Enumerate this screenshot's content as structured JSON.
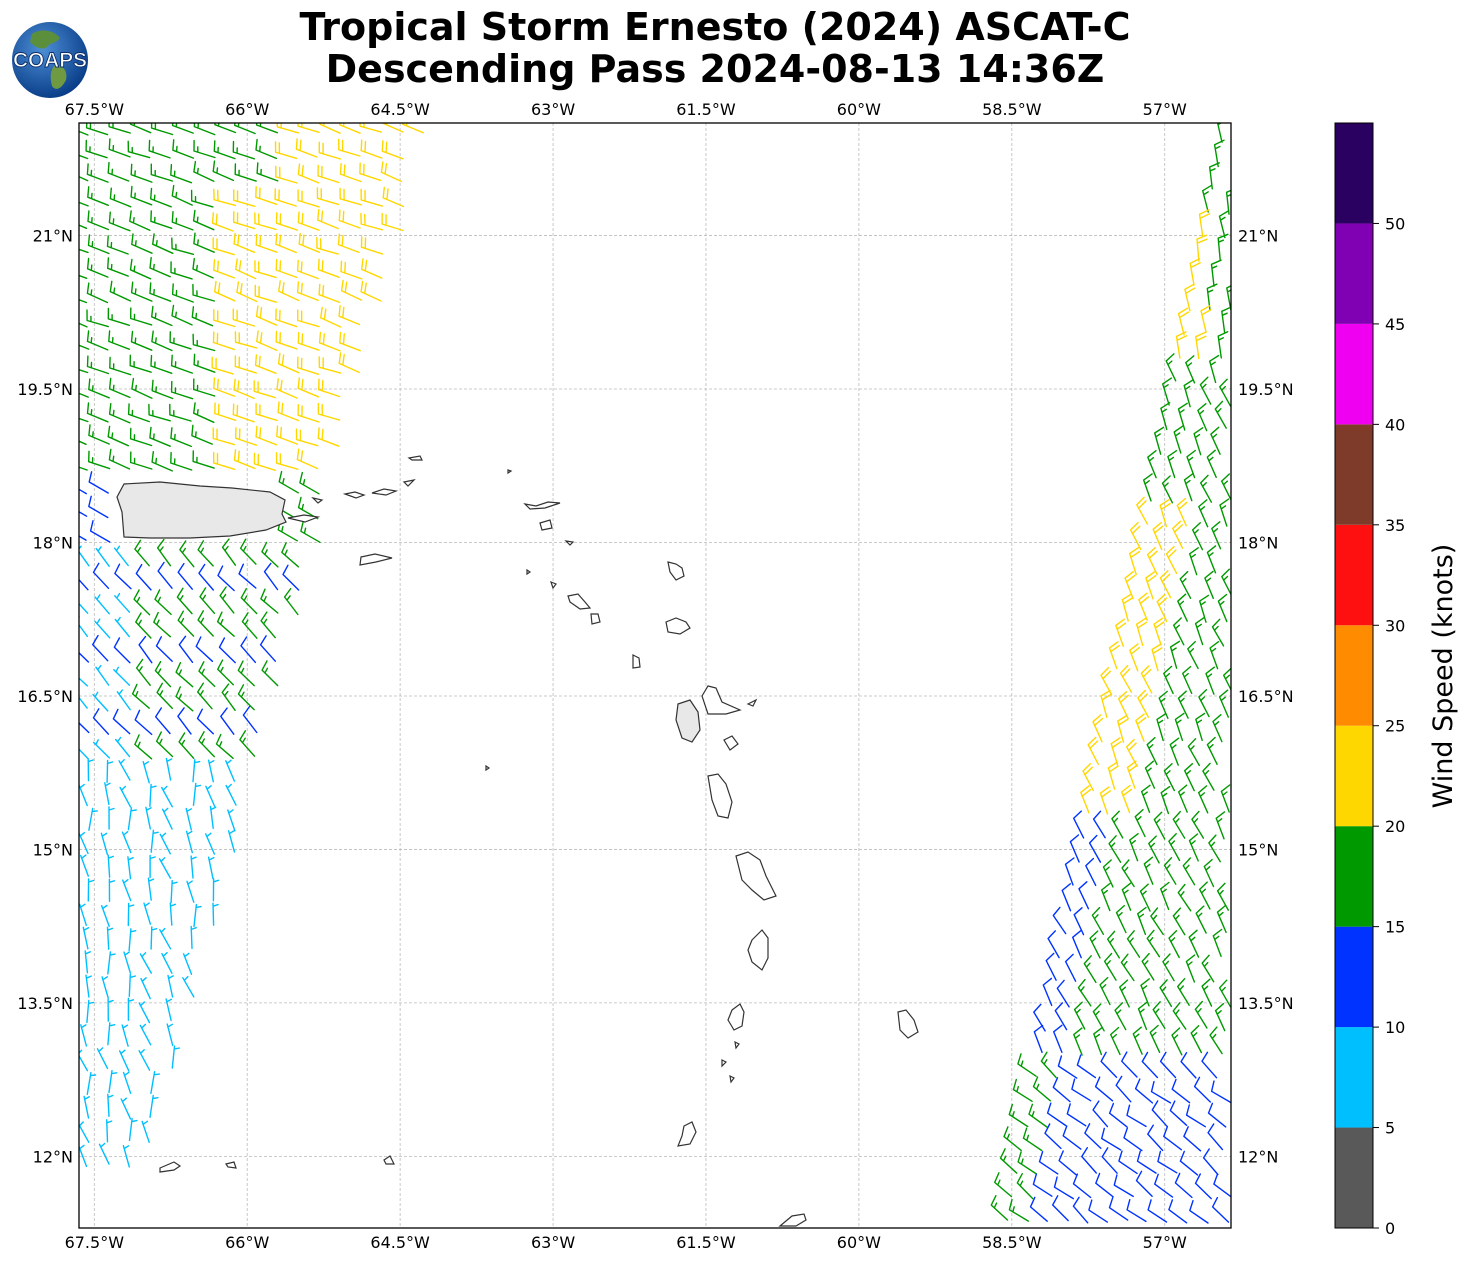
{
  "title": {
    "line1": "Tropical Storm Ernesto (2024) ASCAT-C",
    "line2": "Descending Pass 2024-08-13 14:36Z"
  },
  "logo": {
    "text": "COAPS",
    "icon": "globe-logo-icon"
  },
  "map": {
    "lon_range": [
      -67.65,
      -56.35
    ],
    "lat_range": [
      11.3,
      22.1
    ],
    "lon_ticks": [
      "67.5°W",
      "66°W",
      "64.5°W",
      "63°W",
      "61.5°W",
      "60°W",
      "58.5°W",
      "57°W"
    ],
    "lon_tick_values": [
      -67.5,
      -66,
      -64.5,
      -63,
      -61.5,
      -60,
      -58.5,
      -57
    ],
    "lat_ticks": [
      "21°N",
      "19.5°N",
      "18°N",
      "16.5°N",
      "15°N",
      "13.5°N",
      "12°N"
    ],
    "lat_tick_values": [
      21,
      19.5,
      18,
      16.5,
      15,
      13.5,
      12
    ],
    "gridlines": true
  },
  "colorbar": {
    "label": "Wind Speed (knots)",
    "ticks": [
      "0",
      "5",
      "10",
      "15",
      "20",
      "25",
      "30",
      "35",
      "40",
      "45",
      "50"
    ],
    "bands": [
      {
        "from": 0,
        "to": 5,
        "color": "#595959"
      },
      {
        "from": 5,
        "to": 10,
        "color": "#00bfff"
      },
      {
        "from": 10,
        "to": 15,
        "color": "#0033ff"
      },
      {
        "from": 15,
        "to": 20,
        "color": "#009900"
      },
      {
        "from": 20,
        "to": 25,
        "color": "#ffd700"
      },
      {
        "from": 25,
        "to": 30,
        "color": "#ff8c00"
      },
      {
        "from": 30,
        "to": 35,
        "color": "#ff1010"
      },
      {
        "from": 35,
        "to": 40,
        "color": "#7f3b2a"
      },
      {
        "from": 40,
        "to": 45,
        "color": "#f000f0"
      },
      {
        "from": 45,
        "to": 50,
        "color": "#8000b4"
      },
      {
        "from": 50,
        "to": 55,
        "color": "#2a0060"
      }
    ]
  }
}
